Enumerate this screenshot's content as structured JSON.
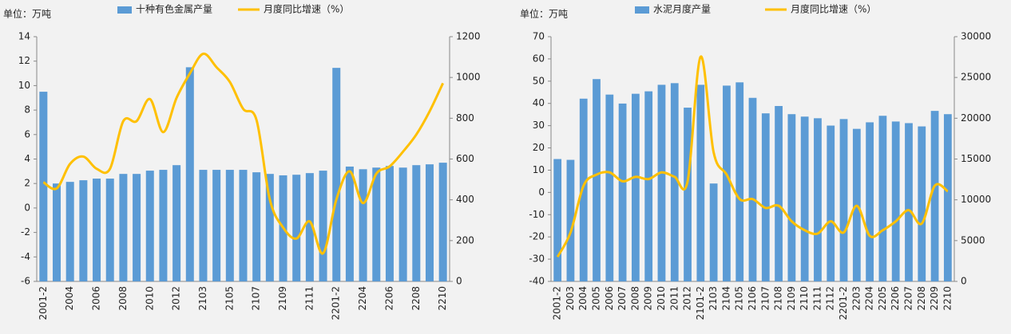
{
  "chart_data": [
    {
      "type": "combo",
      "unit_label": "单位：万吨",
      "categories": [
        "2001-2",
        null,
        "2004",
        null,
        "2006",
        null,
        "2008",
        null,
        "2010",
        null,
        "2012",
        null,
        "2103",
        null,
        "2105",
        null,
        "2107",
        null,
        "2109",
        null,
        "2111",
        null,
        "2201-2",
        null,
        "2204",
        null,
        "2206",
        null,
        "2208",
        null,
        "2210"
      ],
      "series": [
        {
          "name": "十种有色金属产量",
          "type": "bar",
          "axis": "y2",
          "color": "#5b9bd5",
          "values": [
            930,
            480,
            488,
            496,
            504,
            504,
            527,
            527,
            543,
            547,
            570,
            1050,
            547,
            547,
            547,
            547,
            535,
            527,
            520,
            523,
            531,
            543,
            1047,
            563,
            550,
            558,
            566,
            558,
            570,
            574,
            582
          ]
        },
        {
          "name": "月度同比增速（%）",
          "type": "line",
          "axis": "y",
          "color": "#ffc000",
          "values": [
            2.1,
            1.6,
            3.6,
            4.2,
            3.2,
            3.2,
            7.1,
            7.1,
            8.9,
            6.2,
            9.0,
            11.0,
            12.6,
            11.5,
            10.3,
            8.1,
            7.2,
            0.7,
            -1.6,
            -2.5,
            -1.1,
            -3.7,
            0.7,
            3.0,
            0.4,
            2.8,
            3.4,
            4.6,
            6.0,
            7.9,
            10.2
          ]
        }
      ],
      "ylim": [
        -6,
        14
      ],
      "yticks": [
        -6,
        -4,
        -2,
        0,
        2,
        4,
        6,
        8,
        10,
        12,
        14
      ],
      "y2lim": [
        0,
        1200
      ],
      "y2ticks": [
        0,
        200,
        400,
        600,
        800,
        1000,
        1200
      ]
    },
    {
      "type": "combo",
      "unit_label": "单位：万吨",
      "categories": [
        "2001-2",
        "2003",
        "2004",
        "2005",
        "2006",
        "2007",
        "2008",
        "2009",
        "2010",
        "2011",
        "2012",
        "2101-2",
        "2103",
        "2104",
        "2105",
        "2106",
        "2107",
        "2108",
        "2109",
        "2110",
        "2111",
        "2112",
        "2201-2",
        "2203",
        "2204",
        "2205",
        "2206",
        "2207",
        "2208",
        "2209",
        "2210"
      ],
      "series": [
        {
          "name": "水泥月度产量",
          "type": "bar",
          "axis": "y2",
          "color": "#5b9bd5",
          "values": [
            15000,
            14900,
            22400,
            24800,
            22900,
            21800,
            23000,
            23300,
            24100,
            24300,
            21300,
            24100,
            12000,
            24000,
            24400,
            22500,
            20600,
            21500,
            20500,
            20200,
            20000,
            19100,
            19900,
            18700,
            19500,
            20300,
            19600,
            19400,
            19000,
            20900,
            20500
          ]
        },
        {
          "name": "月度同比增速（%）",
          "type": "line",
          "axis": "y",
          "color": "#ffc000",
          "values": [
            -29,
            -18,
            3,
            8,
            9,
            5,
            7,
            6,
            9,
            7,
            5,
            61,
            18,
            8,
            -3,
            -3,
            -7,
            -6,
            -13,
            -17,
            -18.5,
            -13,
            -18,
            -6,
            -19.5,
            -17,
            -13,
            -8,
            -14,
            3,
            0.5
          ]
        }
      ],
      "ylim": [
        -40,
        70
      ],
      "yticks": [
        -40,
        -30,
        -20,
        -10,
        0,
        10,
        20,
        30,
        40,
        50,
        60,
        70
      ],
      "y2lim": [
        0,
        30000
      ],
      "y2ticks": [
        0,
        5000,
        10000,
        15000,
        20000,
        25000,
        30000
      ]
    }
  ]
}
